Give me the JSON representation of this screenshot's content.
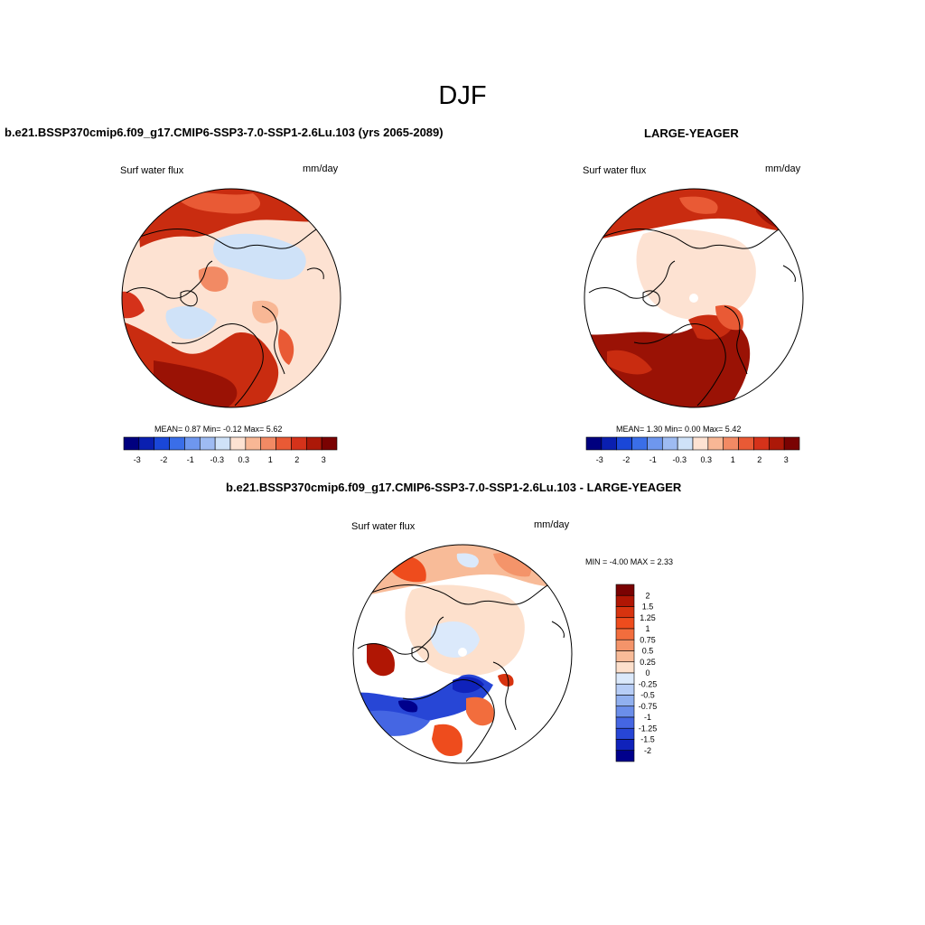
{
  "page": {
    "title": "DJF"
  },
  "panels": [
    {
      "id": "left",
      "header": "b.e21.BSSP370cmip6.f09_g17.CMIP6-SSP3-7.0-SSP1-2.6Lu.103 (yrs 2065-2089)",
      "variable": "Surf water flux",
      "units": "mm/day",
      "stats": "MEAN=   0.87  Min=  -0.12  Max=   5.62",
      "stats_values": {
        "mean": 0.87,
        "min": -0.12,
        "max": 5.62
      }
    },
    {
      "id": "right",
      "header": "LARGE-YEAGER",
      "variable": "Surf water flux",
      "units": "mm/day",
      "stats": "MEAN=   1.30  Min=   0.00  Max=   5.42",
      "stats_values": {
        "mean": 1.3,
        "min": 0.0,
        "max": 5.42
      }
    },
    {
      "id": "diff",
      "header": "b.e21.BSSP370cmip6.f09_g17.CMIP6-SSP3-7.0-SSP1-2.6Lu.103 - LARGE-YEAGER",
      "variable": "Surf water flux",
      "units": "mm/day",
      "stats": "MIN =  -4.00 MAX =   2.33",
      "stats_values": {
        "min": -4.0,
        "max": 2.33
      }
    }
  ],
  "colorbar_abs": {
    "colors": [
      "#00007f",
      "#0a1fb0",
      "#1a47d8",
      "#3a6ee8",
      "#6e97ee",
      "#9ebbf2",
      "#cfe2f8",
      "#fde2d2",
      "#f8b795",
      "#f28a64",
      "#e95a35",
      "#d5321a",
      "#ac1808",
      "#7a0202"
    ],
    "labels": [
      "-3",
      "-2",
      "-1",
      "-0.3",
      "0.3",
      "1",
      "2",
      "3"
    ]
  },
  "colorbar_diff": {
    "colors": [
      "#7a0202",
      "#b01604",
      "#d7330f",
      "#ee4c1d",
      "#f26d3d",
      "#f4946a",
      "#f8bb98",
      "#fde0cc",
      "#dbe9fb",
      "#b7cdf6",
      "#91b0ef",
      "#6b8eea",
      "#4566e3",
      "#2746d6",
      "#0f22bb",
      "#00008c"
    ],
    "labels": [
      "2",
      "1.5",
      "1.25",
      "1",
      "0.75",
      "0.5",
      "0.25",
      "0",
      "-0.25",
      "-0.5",
      "-0.75",
      "-1",
      "-1.25",
      "-1.5",
      "-2"
    ]
  }
}
